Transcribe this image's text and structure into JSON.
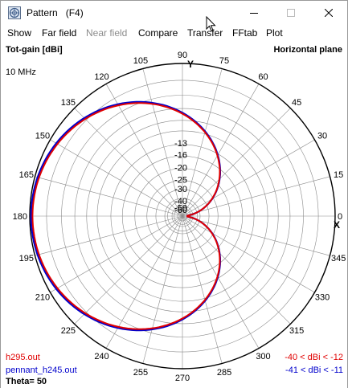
{
  "window": {
    "title": "Pattern   (F4)",
    "icons": {
      "app": "pattern-app-icon",
      "minimize": "minimize-icon",
      "maximize": "maximize-icon",
      "close": "close-icon"
    }
  },
  "menu": [
    {
      "label": "Show",
      "enabled": true
    },
    {
      "label": "Far field",
      "enabled": true
    },
    {
      "label": "Near field",
      "enabled": false
    },
    {
      "label": "Compare",
      "enabled": true
    },
    {
      "label": "Transfer",
      "enabled": true
    },
    {
      "label": "FFtab",
      "enabled": true
    },
    {
      "label": "Plot",
      "enabled": true
    }
  ],
  "plot": {
    "quantity_label": "Tot-gain [dBi]",
    "plane_label": "Horizontal plane",
    "frequency": "10 MHz",
    "y_axis_label": "Y",
    "x_axis_label": "X",
    "theta_label": "Theta= 50",
    "files": [
      {
        "name": "h295.out",
        "range": "-40 < dBi < -12",
        "color": "#e00000"
      },
      {
        "name": "pennant_h245.out",
        "range": "-41 < dBi < -11",
        "color": "#0000cc"
      }
    ]
  },
  "chart_data": {
    "type": "polar",
    "angular_ticks": [
      "0",
      "15",
      "30",
      "45",
      "60",
      "75",
      "90",
      "105",
      "120",
      "135",
      "150",
      "165",
      "180",
      "195",
      "210",
      "225",
      "240",
      "255",
      "270",
      "285",
      "300",
      "315",
      "330",
      "345"
    ],
    "radial_tick_labels": [
      "-13",
      "-16",
      "-20",
      "-25",
      "-30",
      "-40",
      "-50",
      "-60"
    ],
    "radial_values_dbi": [
      -13,
      -16,
      -20,
      -25,
      -30,
      -40,
      -50,
      -60
    ],
    "series": [
      {
        "name": "h295.out",
        "color": "#e00000",
        "max_dbi": -12,
        "min_dbi": -40
      },
      {
        "name": "pennant_h245.out",
        "color": "#0000cc",
        "max_dbi": -11,
        "min_dbi": -41
      }
    ]
  }
}
